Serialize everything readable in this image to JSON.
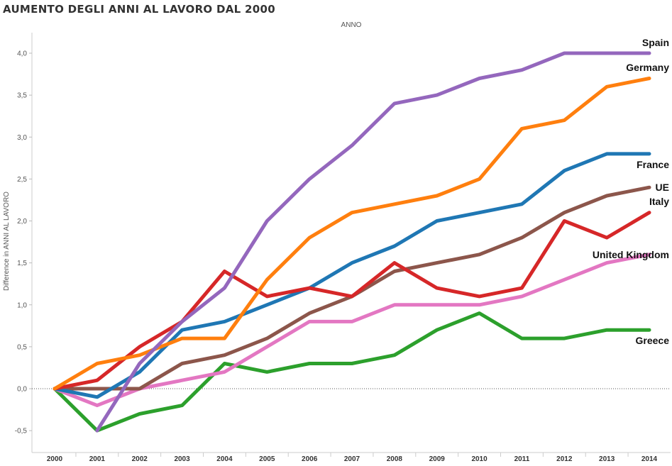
{
  "chart_data": {
    "type": "line",
    "title": "AUMENTO DEGLI ANNI AL LAVORO DAL 2000",
    "top_axis_label": "ANNO",
    "ylabel": "Difference in ANNI AL LAVORO",
    "xlabel": "",
    "ylim": [
      -0.7,
      4.25
    ],
    "yticks": [
      "4,0",
      "3,5",
      "3,0",
      "2,5",
      "2,0",
      "1,5",
      "1,0",
      "0,5",
      "0,0",
      "-0,5"
    ],
    "ytick_values": [
      4.0,
      3.5,
      3.0,
      2.5,
      2.0,
      1.5,
      1.0,
      0.5,
      0.0,
      -0.5
    ],
    "categories": [
      "2000",
      "2001",
      "2002",
      "2003",
      "2004",
      "2005",
      "2006",
      "2007",
      "2008",
      "2009",
      "2010",
      "2011",
      "2012",
      "2013",
      "2014"
    ],
    "legend": "direct labels at line ends",
    "grid": false,
    "series": [
      {
        "name": "Spain",
        "color": "#9467bd",
        "values": [
          null,
          -0.5,
          0.3,
          0.8,
          1.2,
          2.0,
          2.5,
          2.9,
          3.4,
          3.5,
          3.7,
          3.8,
          4.0,
          4.0,
          4.0
        ]
      },
      {
        "name": "Germany",
        "color": "#ff7f0e",
        "values": [
          0.0,
          0.3,
          0.4,
          0.6,
          0.6,
          1.3,
          1.8,
          2.1,
          2.2,
          2.3,
          2.5,
          3.1,
          3.2,
          3.6,
          3.7
        ]
      },
      {
        "name": "France",
        "color": "#1f77b4",
        "values": [
          0.0,
          -0.1,
          0.2,
          0.7,
          0.8,
          1.0,
          1.2,
          1.5,
          1.7,
          2.0,
          2.1,
          2.2,
          2.6,
          2.8,
          2.8
        ]
      },
      {
        "name": "UE",
        "color": "#8c564b",
        "values": [
          0.0,
          0.0,
          0.0,
          0.3,
          0.4,
          0.6,
          0.9,
          1.1,
          1.4,
          1.5,
          1.6,
          1.8,
          2.1,
          2.3,
          2.4
        ]
      },
      {
        "name": "Italy",
        "color": "#d62728",
        "values": [
          0.0,
          0.1,
          0.5,
          0.8,
          1.4,
          1.1,
          1.2,
          1.1,
          1.5,
          1.2,
          1.1,
          1.2,
          2.0,
          1.8,
          2.1
        ]
      },
      {
        "name": "United Kingdom",
        "color": "#e377c2",
        "values": [
          0.0,
          -0.2,
          0.0,
          0.1,
          0.2,
          0.5,
          0.8,
          0.8,
          1.0,
          1.0,
          1.0,
          1.1,
          1.3,
          1.5,
          1.6
        ]
      },
      {
        "name": "Greece",
        "color": "#2ca02c",
        "values": [
          0.0,
          -0.5,
          -0.3,
          -0.2,
          0.3,
          0.2,
          0.3,
          0.3,
          0.4,
          0.7,
          0.9,
          0.6,
          0.6,
          0.7,
          0.7
        ]
      }
    ]
  }
}
